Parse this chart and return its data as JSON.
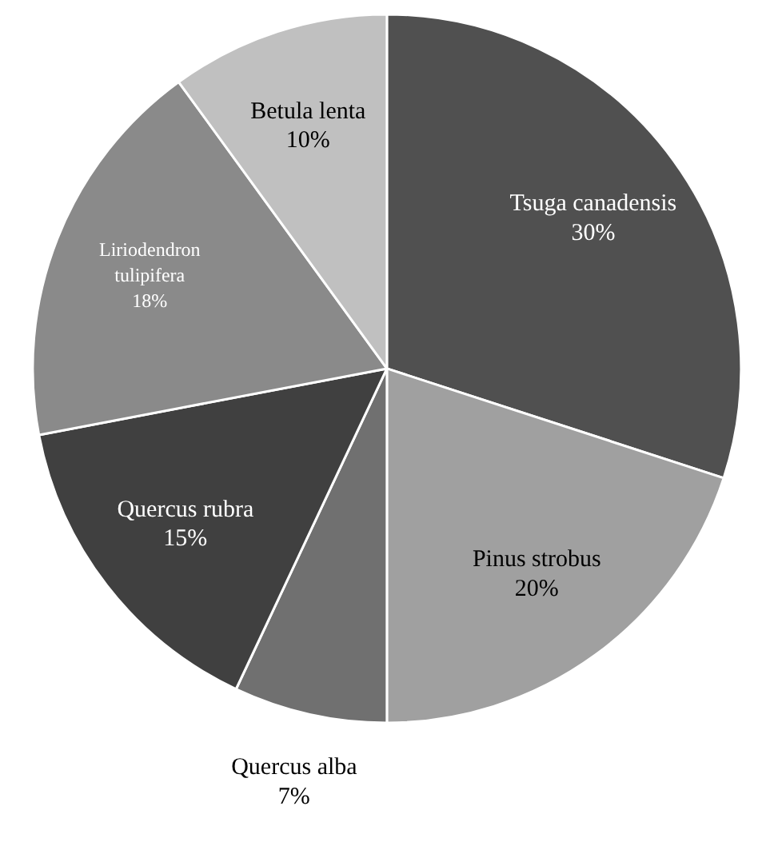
{
  "chart_data": {
    "type": "pie",
    "categories": [
      "Tsuga canadensis",
      "Pinus strobus",
      "Quercus alba",
      "Quercus rubra",
      "Liriodendron tulipifera",
      "Betula lenta"
    ],
    "values": [
      30,
      20,
      7,
      15,
      18,
      10
    ],
    "colors": [
      "#505050",
      "#a0a0a0",
      "#707070",
      "#404040",
      "#8a8a8a",
      "#c0c0c0"
    ],
    "value_labels": [
      "30%",
      "20%",
      "7%",
      "15%",
      "18%",
      "10%"
    ]
  }
}
